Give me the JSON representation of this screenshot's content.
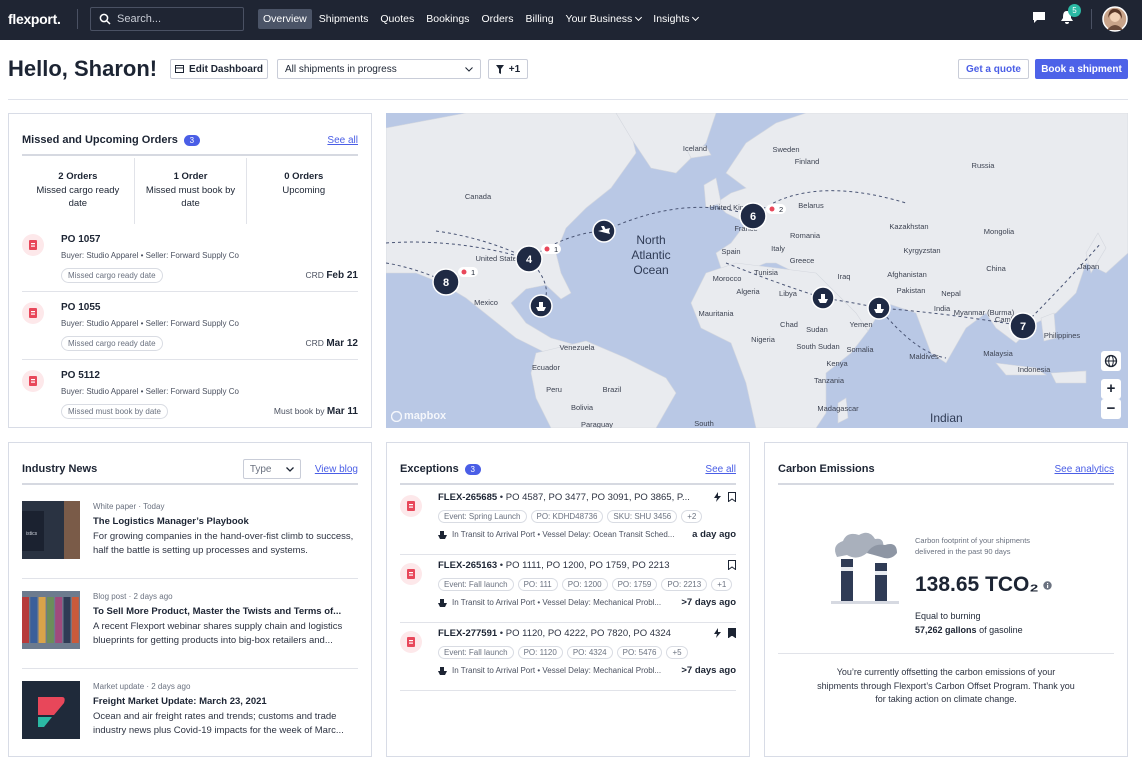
{
  "nav": {
    "logo": "flexport.",
    "search_placeholder": "Search...",
    "links": [
      "Overview",
      "Shipments",
      "Quotes",
      "Bookings",
      "Orders",
      "Billing",
      "Your Business",
      "Insights"
    ],
    "notification_count": "5"
  },
  "header": {
    "greeting": "Hello, Sharon!",
    "edit_button": "Edit Dashboard",
    "shipment_filter": "All shipments in progress",
    "filter_count": "+1",
    "quote_button": "Get a quote",
    "book_button": "Book a shipment"
  },
  "orders": {
    "title": "Missed and Upcoming Orders",
    "count": "3",
    "link": "See all",
    "summary": [
      {
        "count": "2 Orders",
        "label": "Missed cargo ready date"
      },
      {
        "count": "1 Order",
        "label": "Missed must book by date"
      },
      {
        "count": "0 Orders",
        "label": "Upcoming"
      }
    ],
    "items": [
      {
        "po": "PO 1057",
        "parties": "Buyer: Studio Apparel • Seller: Forward Supply Co",
        "tag": "Missed cargo ready date",
        "date_label": "CRD",
        "date": "Feb 21"
      },
      {
        "po": "PO 1055",
        "parties": "Buyer: Studio Apparel • Seller: Forward Supply Co",
        "tag": "Missed cargo ready date",
        "date_label": "CRD",
        "date": "Mar 12"
      },
      {
        "po": "PO 5112",
        "parties": "Buyer: Studio Apparel • Seller: Forward Supply Co",
        "tag": "Missed must book by date",
        "date_label": "Must book by",
        "date": "Mar 11"
      }
    ]
  },
  "map": {
    "labels": [
      "Iceland",
      "Sweden",
      "Finland",
      "Russia",
      "Canada",
      "United Kingdom",
      "Belarus",
      "France",
      "Spain",
      "Romania",
      "Italy",
      "Greece",
      "Tunisia",
      "Morocco",
      "Algeria",
      "Libya",
      "Iraq",
      "Kazakhstan",
      "Mongolia",
      "Kyrgyzstan",
      "China",
      "Japan",
      "Afghanistan",
      "Pakistan",
      "Nepal",
      "India",
      "Myanmar (Burma)",
      "Cambodia",
      "Philippines",
      "Malaysia",
      "Indonesia",
      "Maldives",
      "Yemen",
      "Somalia",
      "Sudan",
      "South Sudan",
      "Chad",
      "Nigeria",
      "Mauritania",
      "Kenya",
      "Tanzania",
      "Madagascar",
      "Venezuela",
      "Ecuador",
      "Peru",
      "Brazil",
      "Bolivia",
      "Paraguay",
      "United States",
      "Mexico",
      "South"
    ],
    "oceans": [
      "North Atlantic Ocean",
      "Indian"
    ],
    "clusters": [
      "8",
      "4",
      "6",
      "7"
    ],
    "badges": [
      "1",
      "1",
      "2"
    ],
    "attribution": "mapbox",
    "zoom_in": "+",
    "zoom_out": "−"
  },
  "news": {
    "title": "Industry News",
    "type_filter": "Type",
    "link": "View blog",
    "items": [
      {
        "meta": "White paper · Today",
        "title": "The Logistics Manager’s Playbook",
        "summary": "For growing companies in the hand-over-fist climb to success, half the battle is setting up processes and systems."
      },
      {
        "meta": "Blog post · 2 days ago",
        "title": "To Sell More Product, Master the Twists and Terms of...",
        "summary": "A recent Flexport webinar shares supply chain and logistics blueprints for getting products into big-box retailers and..."
      },
      {
        "meta": "Market update · 2 days ago",
        "title": "Freight Market Update: March 23, 2021",
        "summary": "Ocean and air freight rates and trends; customs and trade industry news plus Covid-19 impacts for the week of Marc..."
      }
    ]
  },
  "exceptions": {
    "title": "Exceptions",
    "count": "3",
    "link": "See all",
    "items": [
      {
        "id": "FLEX-265685",
        "pos": "• PO 4587, PO 3477, PO 3091, PO 3865, P...",
        "tags": [
          "Event: Spring Launch",
          "PO: KDHD48736",
          "SKU: SHU 3456",
          "+2"
        ],
        "status": "In Transit to Arrival Port • Vessel Delay: Ocean Transit Sched...",
        "time": "a day ago"
      },
      {
        "id": "FLEX-265163",
        "pos": "• PO 1111, PO 1200, PO 1759, PO 2213",
        "tags": [
          "Event: Fall launch",
          "PO: 111",
          "PO: 1200",
          "PO: 1759",
          "PO: 2213",
          "+1"
        ],
        "status": "In Transit to Arrival Port • Vessel Delay: Mechanical Probl...",
        "time": ">7 days ago"
      },
      {
        "id": "FLEX-277591",
        "pos": "• PO 1120, PO 4222, PO 7820, PO 4324",
        "tags": [
          "Event: Fall launch",
          "PO: 1120",
          "PO: 4324",
          "PO: 5476",
          "+5"
        ],
        "status": "In Transit to Arrival Port • Vessel Delay: Mechanical Probl...",
        "time": ">7 days ago"
      }
    ]
  },
  "carbon": {
    "title": "Carbon Emissions",
    "link": "See analytics",
    "caption": "Carbon footprint of your shipments delivered in the past 90 days",
    "value": "138.65 TCO₂",
    "equivalent_label": "Equal to burning",
    "equivalent_amount": "57,262 gallons",
    "equivalent_unit": "of gasoline",
    "offset_note": "You’re currently offsetting the carbon emissions of your shipments through Flexport’s Carbon Offset Program. Thank you for taking action on climate change."
  }
}
